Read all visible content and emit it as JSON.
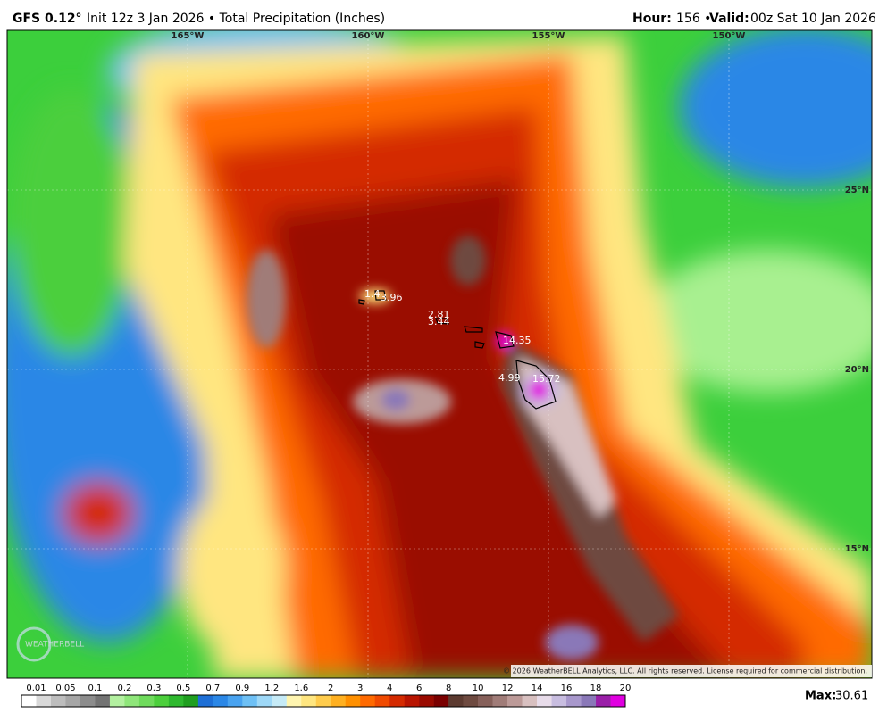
{
  "header": {
    "model": "GFS 0.12°",
    "subtitle": "Init 12z 3 Jan 2026 • Total Precipitation (Inches)",
    "hour_label": "Hour:",
    "hour_value": "156 •",
    "valid_label": "Valid:",
    "valid_value": "00z Sat 10 Jan 2026"
  },
  "map": {
    "lon_labels": [
      "165°W",
      "160°W",
      "155°W",
      "150°W"
    ],
    "lat_labels": [
      "25°N",
      "20°N",
      "15°N"
    ],
    "point_values": [
      "3.96",
      "1.4",
      "2.81",
      "3.44",
      "14.35",
      "4.99",
      "15.72"
    ],
    "logo": "WEATHERBELL",
    "copyright": "© 2026 WeatherBELL Analytics, LLC. All rights reserved. License required for commercial distribution."
  },
  "colorbar": {
    "ticks": [
      0.01,
      0.05,
      0.1,
      0.2,
      0.3,
      0.5,
      0.7,
      0.9,
      1.2,
      1.6,
      2,
      3,
      4,
      6,
      8,
      10,
      12,
      14,
      16,
      18,
      20
    ],
    "colors": [
      "#ffffff",
      "#d9d9d9",
      "#bdbdbd",
      "#a6a6a6",
      "#8c8c8c",
      "#737373",
      "#b3f0a0",
      "#8fe67a",
      "#6fdb5c",
      "#4ccf3c",
      "#2eb82e",
      "#1f9e1f",
      "#1e6fd6",
      "#2b87e6",
      "#49a3f0",
      "#6ec0f5",
      "#9ed8f7",
      "#c6ebf7",
      "#fff5b0",
      "#ffe680",
      "#ffcc4d",
      "#ffb020",
      "#ff9000",
      "#ff6a00",
      "#f04a00",
      "#d42a00",
      "#b81400",
      "#9a0a00",
      "#7a0000",
      "#5c3a30",
      "#6e4a40",
      "#86605a",
      "#a07c78",
      "#bc9a98",
      "#d8c0c0",
      "#e8dcea",
      "#c8bde0",
      "#a898cc",
      "#8a78b8",
      "#9a1fa8",
      "#e000e0"
    ],
    "max_label": "Max:",
    "max_value": "30.61"
  }
}
